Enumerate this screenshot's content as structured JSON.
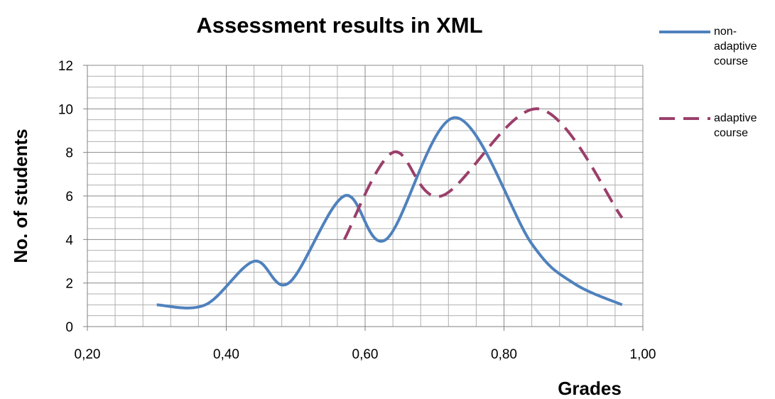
{
  "chart_data": {
    "type": "line",
    "title": "Assessment results in XML",
    "xlabel": "Grades",
    "ylabel": "No. of students",
    "smooth": true,
    "grid": true,
    "legend": "right",
    "xlim": [
      0.2,
      1.0
    ],
    "ylim": [
      0,
      12
    ],
    "xticks": [
      {
        "value": 0.2,
        "label": "0,20"
      },
      {
        "value": 0.4,
        "label": "0,40"
      },
      {
        "value": 0.6,
        "label": "0,60"
      },
      {
        "value": 0.8,
        "label": "0,80"
      },
      {
        "value": 1.0,
        "label": "1,00"
      }
    ],
    "yticks": [
      0,
      2,
      4,
      6,
      8,
      10,
      12
    ],
    "minor_xticks": [
      0.24,
      0.28,
      0.32,
      0.36,
      0.44,
      0.48,
      0.52,
      0.56,
      0.64,
      0.68,
      0.72,
      0.76,
      0.84,
      0.88,
      0.92,
      0.96
    ],
    "minor_yticks": [
      0.5,
      1,
      1.5,
      2.5,
      3,
      3.5,
      4.5,
      5,
      5.5,
      6.5,
      7,
      7.5,
      8.5,
      9,
      9.5,
      10.5,
      11,
      11.5
    ],
    "series": [
      {
        "name": "non-adaptive course",
        "color": "#4f81bd",
        "dash": false,
        "x": [
          0.3,
          0.37,
          0.44,
          0.49,
          0.57,
          0.63,
          0.73,
          0.84,
          0.9,
          0.97
        ],
        "values": [
          1,
          1,
          3,
          2,
          6,
          4,
          9.6,
          3.8,
          2,
          1
        ]
      },
      {
        "name": "adaptive course",
        "color": "#9b3f6a",
        "dash": true,
        "x": [
          0.57,
          0.64,
          0.71,
          0.85,
          0.97
        ],
        "values": [
          4,
          8,
          6,
          10,
          5
        ]
      }
    ]
  }
}
